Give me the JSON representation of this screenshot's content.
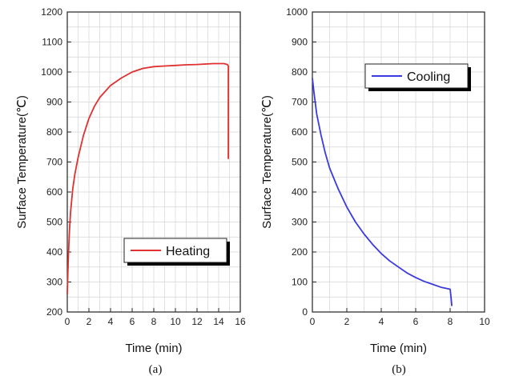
{
  "chart_data": [
    {
      "type": "line",
      "xlabel": "Time (min)",
      "ylabel": "Surface Temperature(℃)",
      "panel_label": "(a)",
      "xlim": [
        0,
        16
      ],
      "ylim": [
        200,
        1200
      ],
      "xticks": [
        0,
        2,
        4,
        6,
        8,
        10,
        12,
        14,
        16
      ],
      "yticks": [
        200,
        300,
        400,
        500,
        600,
        700,
        800,
        900,
        1000,
        1100,
        1200
      ],
      "grid": true,
      "legend_position": "lower-right",
      "series": [
        {
          "name": "Heating",
          "color": "#e03030",
          "x": [
            0,
            0.1,
            0.2,
            0.3,
            0.5,
            0.7,
            1,
            1.5,
            2,
            2.5,
            3,
            4,
            5,
            6,
            7,
            8,
            9,
            10,
            11,
            12,
            13,
            13.5,
            14,
            14.5,
            14.8,
            14.9,
            14.9
          ],
          "y": [
            260,
            380,
            470,
            530,
            610,
            660,
            715,
            790,
            845,
            885,
            915,
            955,
            980,
            1000,
            1012,
            1018,
            1020,
            1022,
            1024,
            1025,
            1027,
            1028,
            1028,
            1028,
            1025,
            1020,
            710
          ]
        }
      ]
    },
    {
      "type": "line",
      "xlabel": "Time (min)",
      "ylabel": "Surface Temperature(℃)",
      "panel_label": "(b)",
      "xlim": [
        0,
        10
      ],
      "ylim": [
        0,
        1000
      ],
      "xticks": [
        0,
        2,
        4,
        6,
        8,
        10
      ],
      "yticks": [
        0,
        100,
        200,
        300,
        400,
        500,
        600,
        700,
        800,
        900,
        1000
      ],
      "grid": true,
      "legend_position": "upper-right",
      "series": [
        {
          "name": "Cooling",
          "color": "#3a3ae0",
          "x": [
            0,
            0.1,
            0.25,
            0.5,
            0.75,
            1,
            1.5,
            2,
            2.5,
            3,
            3.5,
            4,
            4.5,
            5,
            5.5,
            6,
            6.5,
            7,
            7.5,
            8,
            8.05,
            8.1
          ],
          "y": [
            780,
            730,
            660,
            590,
            530,
            480,
            410,
            350,
            300,
            260,
            225,
            195,
            170,
            150,
            130,
            115,
            102,
            92,
            82,
            76,
            50,
            20
          ]
        }
      ]
    }
  ]
}
